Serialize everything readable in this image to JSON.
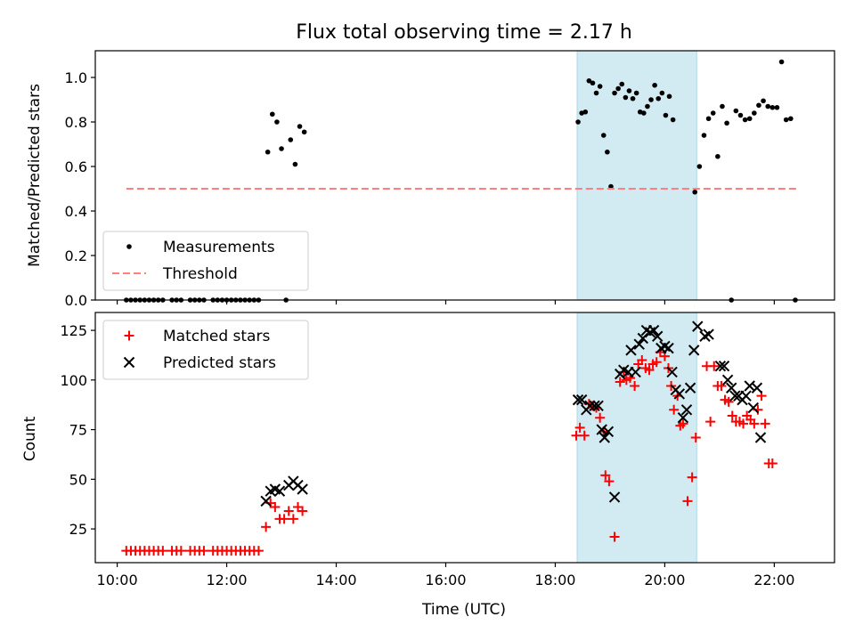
{
  "figure": {
    "title": "Flux total observing time = 2.17 h"
  },
  "chart_data": [
    {
      "type": "scatter",
      "panel": "top",
      "ylabel": "Matched/Predicted stars",
      "xlabel": "",
      "xlim": [
        "09:36",
        "23:06"
      ],
      "ylim": [
        0,
        1.12
      ],
      "yticks": [
        0.0,
        0.2,
        0.4,
        0.6,
        0.8,
        1.0
      ],
      "ytick_labels": [
        "0.0",
        "0.2",
        "0.4",
        "0.6",
        "0.8",
        "1.0"
      ],
      "xtick_labels_visible": false,
      "grid": false,
      "legend_position": "lower-left",
      "highlight_span": {
        "x": [
          "18:24",
          "20:35"
        ],
        "color": "#add8e6"
      },
      "series": [
        {
          "name": "Measurements",
          "marker": "dot",
          "color": "#000000",
          "points": [
            [
              "10:10",
              0
            ],
            [
              "10:15",
              0
            ],
            [
              "10:20",
              0
            ],
            [
              "10:25",
              0
            ],
            [
              "10:30",
              0
            ],
            [
              "10:35",
              0
            ],
            [
              "10:40",
              0
            ],
            [
              "10:45",
              0
            ],
            [
              "10:50",
              0
            ],
            [
              "11:00",
              0
            ],
            [
              "11:05",
              0
            ],
            [
              "11:10",
              0
            ],
            [
              "11:20",
              0
            ],
            [
              "11:25",
              0
            ],
            [
              "11:30",
              0
            ],
            [
              "11:35",
              0
            ],
            [
              "11:45",
              0
            ],
            [
              "11:50",
              0
            ],
            [
              "11:55",
              0
            ],
            [
              "12:00",
              0
            ],
            [
              "12:05",
              0
            ],
            [
              "12:10",
              0
            ],
            [
              "12:15",
              0
            ],
            [
              "12:20",
              0
            ],
            [
              "12:25",
              0
            ],
            [
              "12:30",
              0
            ],
            [
              "12:35",
              0
            ],
            [
              "12:45",
              0.665
            ],
            [
              "12:50",
              0.835
            ],
            [
              "12:55",
              0.8
            ],
            [
              "13:00",
              0.68
            ],
            [
              "13:05",
              0
            ],
            [
              "13:10",
              0.72
            ],
            [
              "13:15",
              0.61
            ],
            [
              "13:20",
              0.78
            ],
            [
              "13:25",
              0.755
            ],
            [
              "18:25",
              0.8
            ],
            [
              "18:29",
              0.84
            ],
            [
              "18:33",
              0.845
            ],
            [
              "18:37",
              0.985
            ],
            [
              "18:41",
              0.975
            ],
            [
              "18:45",
              0.93
            ],
            [
              "18:49",
              0.96
            ],
            [
              "18:53",
              0.74
            ],
            [
              "18:57",
              0.665
            ],
            [
              "19:01",
              0.51
            ],
            [
              "19:05",
              0.93
            ],
            [
              "19:09",
              0.95
            ],
            [
              "19:13",
              0.97
            ],
            [
              "19:17",
              0.91
            ],
            [
              "19:21",
              0.94
            ],
            [
              "19:25",
              0.905
            ],
            [
              "19:29",
              0.93
            ],
            [
              "19:33",
              0.845
            ],
            [
              "19:37",
              0.84
            ],
            [
              "19:41",
              0.87
            ],
            [
              "19:45",
              0.9
            ],
            [
              "19:49",
              0.965
            ],
            [
              "19:53",
              0.905
            ],
            [
              "19:57",
              0.93
            ],
            [
              "20:01",
              0.83
            ],
            [
              "20:05",
              0.915
            ],
            [
              "20:09",
              0.81
            ],
            [
              "20:33",
              0.485
            ],
            [
              "20:38",
              0.6
            ],
            [
              "20:43",
              0.74
            ],
            [
              "20:48",
              0.815
            ],
            [
              "20:53",
              0.84
            ],
            [
              "20:58",
              0.645
            ],
            [
              "21:03",
              0.87
            ],
            [
              "21:08",
              0.795
            ],
            [
              "21:13",
              0
            ],
            [
              "21:18",
              0.85
            ],
            [
              "21:23",
              0.83
            ],
            [
              "21:28",
              0.81
            ],
            [
              "21:33",
              0.815
            ],
            [
              "21:38",
              0.84
            ],
            [
              "21:43",
              0.875
            ],
            [
              "21:48",
              0.895
            ],
            [
              "21:53",
              0.87
            ],
            [
              "21:58",
              0.865
            ],
            [
              "22:03",
              0.865
            ],
            [
              "22:08",
              1.07
            ],
            [
              "22:13",
              0.81
            ],
            [
              "22:18",
              0.815
            ],
            [
              "22:23",
              0
            ]
          ]
        },
        {
          "name": "Threshold",
          "line_style": "dashed",
          "color": "#ff7f7f",
          "points": [
            [
              "10:10",
              0.5
            ],
            [
              "22:25",
              0.5
            ]
          ]
        }
      ]
    },
    {
      "type": "scatter",
      "panel": "bottom",
      "ylabel": "Count",
      "xlabel": "Time (UTC)",
      "xlim": [
        "09:36",
        "23:06"
      ],
      "ylim": [
        8,
        134
      ],
      "yticks": [
        25,
        50,
        75,
        100,
        125
      ],
      "ytick_labels": [
        "25",
        "50",
        "75",
        "100",
        "125"
      ],
      "xticks": [
        "10:00",
        "12:00",
        "14:00",
        "16:00",
        "18:00",
        "20:00",
        "22:00"
      ],
      "xtick_labels": [
        "10:00",
        "12:00",
        "14:00",
        "16:00",
        "18:00",
        "20:00",
        "22:00"
      ],
      "grid": false,
      "legend_position": "upper-left",
      "highlight_span": {
        "x": [
          "18:24",
          "20:35"
        ],
        "color": "#add8e6"
      },
      "series": [
        {
          "name": "Matched stars",
          "marker": "plus",
          "color": "#ff0000",
          "points": [
            [
              "10:10",
              14
            ],
            [
              "10:15",
              14
            ],
            [
              "10:20",
              14
            ],
            [
              "10:25",
              14
            ],
            [
              "10:30",
              14
            ],
            [
              "10:35",
              14
            ],
            [
              "10:40",
              14
            ],
            [
              "10:45",
              14
            ],
            [
              "10:50",
              14
            ],
            [
              "11:00",
              14
            ],
            [
              "11:05",
              14
            ],
            [
              "11:10",
              14
            ],
            [
              "11:20",
              14
            ],
            [
              "11:25",
              14
            ],
            [
              "11:30",
              14
            ],
            [
              "11:35",
              14
            ],
            [
              "11:45",
              14
            ],
            [
              "11:50",
              14
            ],
            [
              "11:55",
              14
            ],
            [
              "12:00",
              14
            ],
            [
              "12:05",
              14
            ],
            [
              "12:10",
              14
            ],
            [
              "12:15",
              14
            ],
            [
              "12:20",
              14
            ],
            [
              "12:25",
              14
            ],
            [
              "12:30",
              14
            ],
            [
              "12:35",
              14
            ],
            [
              "12:43",
              26
            ],
            [
              "12:48",
              38
            ],
            [
              "12:53",
              36
            ],
            [
              "12:58",
              30
            ],
            [
              "13:03",
              30
            ],
            [
              "13:08",
              34
            ],
            [
              "13:13",
              30
            ],
            [
              "13:18",
              36
            ],
            [
              "13:23",
              34
            ],
            [
              "18:23",
              72
            ],
            [
              "18:27",
              76
            ],
            [
              "18:32",
              72
            ],
            [
              "18:37",
              88
            ],
            [
              "18:41",
              87
            ],
            [
              "18:45",
              86
            ],
            [
              "18:49",
              81
            ],
            [
              "18:53",
              74
            ],
            [
              "18:55",
              52
            ],
            [
              "18:59",
              49
            ],
            [
              "19:05",
              21
            ],
            [
              "19:11",
              99
            ],
            [
              "19:15",
              104
            ],
            [
              "19:18",
              100
            ],
            [
              "19:22",
              101
            ],
            [
              "19:27",
              97
            ],
            [
              "19:31",
              108
            ],
            [
              "19:35",
              110
            ],
            [
              "19:39",
              106
            ],
            [
              "19:43",
              105
            ],
            [
              "19:47",
              108
            ],
            [
              "19:51",
              109
            ],
            [
              "19:55",
              114
            ],
            [
              "20:00",
              112
            ],
            [
              "20:04",
              106
            ],
            [
              "20:07",
              97
            ],
            [
              "20:10",
              85
            ],
            [
              "20:14",
              92
            ],
            [
              "20:17",
              77
            ],
            [
              "20:20",
              78
            ],
            [
              "20:25",
              39
            ],
            [
              "20:30",
              51
            ],
            [
              "20:34",
              71
            ],
            [
              "20:46",
              107
            ],
            [
              "20:50",
              79
            ],
            [
              "20:54",
              107
            ],
            [
              "20:58",
              97
            ],
            [
              "21:02",
              97
            ],
            [
              "21:06",
              90
            ],
            [
              "21:10",
              89
            ],
            [
              "21:14",
              82
            ],
            [
              "21:18",
              79
            ],
            [
              "21:22",
              79
            ],
            [
              "21:26",
              78
            ],
            [
              "21:30",
              82
            ],
            [
              "21:34",
              80
            ],
            [
              "21:38",
              78
            ],
            [
              "21:42",
              85
            ],
            [
              "21:46",
              92
            ],
            [
              "21:50",
              78
            ],
            [
              "21:54",
              58
            ],
            [
              "21:58",
              58
            ]
          ]
        },
        {
          "name": "Predicted stars",
          "marker": "x",
          "color": "#000000",
          "points": [
            [
              "12:43",
              39
            ],
            [
              "12:48",
              44
            ],
            [
              "12:53",
              45
            ],
            [
              "12:58",
              44
            ],
            [
              "13:08",
              47
            ],
            [
              "13:13",
              49
            ],
            [
              "13:18",
              47
            ],
            [
              "13:23",
              45
            ],
            [
              "18:25",
              90
            ],
            [
              "18:29",
              90
            ],
            [
              "18:34",
              85
            ],
            [
              "18:38",
              87
            ],
            [
              "18:43",
              87
            ],
            [
              "18:47",
              87
            ],
            [
              "18:51",
              75
            ],
            [
              "18:54",
              71
            ],
            [
              "18:58",
              74
            ],
            [
              "19:05",
              41
            ],
            [
              "19:11",
              103
            ],
            [
              "19:15",
              105
            ],
            [
              "19:20",
              104
            ],
            [
              "19:23",
              115
            ],
            [
              "19:28",
              104
            ],
            [
              "19:32",
              118
            ],
            [
              "19:36",
              121
            ],
            [
              "19:40",
              125
            ],
            [
              "19:44",
              124
            ],
            [
              "19:48",
              125
            ],
            [
              "19:52",
              122
            ],
            [
              "19:56",
              116
            ],
            [
              "20:00",
              117
            ],
            [
              "20:04",
              116
            ],
            [
              "20:08",
              104
            ],
            [
              "20:12",
              95
            ],
            [
              "20:16",
              93
            ],
            [
              "20:20",
              81
            ],
            [
              "20:24",
              85
            ],
            [
              "20:28",
              96
            ],
            [
              "20:32",
              115
            ],
            [
              "20:36",
              127
            ],
            [
              "20:44",
              122
            ],
            [
              "20:48",
              123
            ],
            [
              "21:01",
              107
            ],
            [
              "21:05",
              107
            ],
            [
              "21:09",
              100
            ],
            [
              "21:13",
              96
            ],
            [
              "21:17",
              92
            ],
            [
              "21:21",
              92
            ],
            [
              "21:25",
              90
            ],
            [
              "21:29",
              92
            ],
            [
              "21:33",
              97
            ],
            [
              "21:37",
              86
            ],
            [
              "21:41",
              96
            ],
            [
              "21:45",
              71
            ]
          ]
        }
      ]
    }
  ]
}
